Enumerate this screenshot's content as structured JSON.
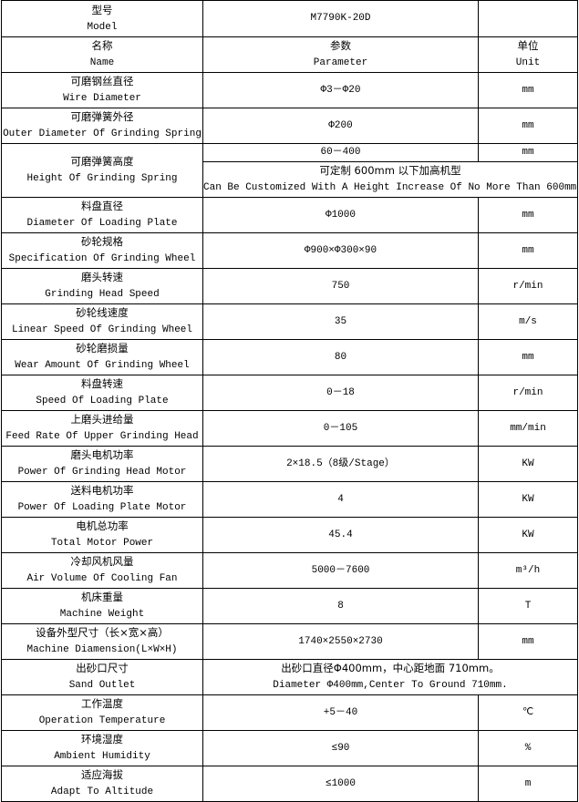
{
  "model_row": {
    "label_zh": "型号",
    "label_en": "Model",
    "value": "M7790K-20D"
  },
  "header": {
    "name_zh": "名称",
    "name_en": "Name",
    "param_zh": "参数",
    "param_en": "Parameter",
    "unit_zh": "单位",
    "unit_en": "Unit"
  },
  "rows": [
    {
      "zh": "可磨钢丝直径",
      "en": "Wire Diameter",
      "value": "Φ3－Φ20",
      "unit": "mm"
    },
    {
      "zh": "可磨弹簧外径",
      "en": "Outer Diameter Of Grinding Spring",
      "value": "Φ200",
      "unit": "mm"
    },
    {
      "zh": "可磨弹簧高度",
      "en": "Height Of Grinding Spring",
      "value": "60－400",
      "unit": "mm",
      "note_zh": "可定制 600mm 以下加高机型",
      "note_en": "Can Be Customized With A Height Increase Of No More Than 600mm."
    },
    {
      "zh": "料盘直径",
      "en": "Diameter Of Loading Plate",
      "value": "Φ1000",
      "unit": "mm"
    },
    {
      "zh": "砂轮规格",
      "en": "Specification Of Grinding Wheel",
      "value": "Φ900×Φ300×90",
      "unit": "mm"
    },
    {
      "zh": "磨头转速",
      "en": "Grinding Head Speed",
      "value": "750",
      "unit": "r/min"
    },
    {
      "zh": "砂轮线速度",
      "en": "Linear Speed Of Grinding Wheel",
      "value": "35",
      "unit": "m/s"
    },
    {
      "zh": "砂轮磨损量",
      "en": "Wear Amount Of Grinding Wheel",
      "value": "80",
      "unit": "mm"
    },
    {
      "zh": "料盘转速",
      "en": "Speed Of Loading Plate",
      "value": "0－18",
      "unit": "r/min"
    },
    {
      "zh": "上磨头进给量",
      "en": "Feed Rate Of Upper Grinding Head",
      "value": "0－105",
      "unit": "mm/min"
    },
    {
      "zh": "磨头电机功率",
      "en": "Power Of Grinding Head Motor",
      "value": "2×18.5（8级/Stage）",
      "unit": "KW"
    },
    {
      "zh": "送料电机功率",
      "en": "Power Of Loading Plate Motor",
      "value": "4",
      "unit": "KW"
    },
    {
      "zh": "电机总功率",
      "en": "Total Motor Power",
      "value": "45.4",
      "unit": "KW"
    },
    {
      "zh": "冷却风机风量",
      "en": "Air Volume Of Cooling Fan",
      "value": "5000－7600",
      "unit": "m³/h"
    },
    {
      "zh": "机床重量",
      "en": "Machine Weight",
      "value": "8",
      "unit": "T"
    },
    {
      "zh": "设备外型尺寸（长×宽×高）",
      "en": "Machine Diamension(L×W×H)",
      "value": "1740×2550×2730",
      "unit": "mm"
    },
    {
      "zh": "出砂口尺寸",
      "en": "Sand Outlet",
      "value_zh": "出砂口直径Φ400mm，中心距地面 710mm。",
      "value_en": "Diameter Φ400mm,Center To Ground 710mm."
    },
    {
      "zh": "工作温度",
      "en": "Operation Temperature",
      "value": "+5－40",
      "unit": "℃"
    },
    {
      "zh": "环境湿度",
      "en": "Ambient Humidity",
      "value": "≤90",
      "unit": "%"
    },
    {
      "zh": "适应海拔",
      "en": "Adapt To Altitude",
      "value": "≤1000",
      "unit": "m"
    }
  ]
}
